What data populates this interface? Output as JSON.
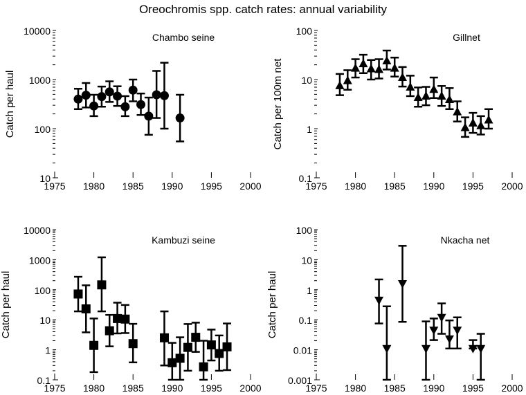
{
  "chart_data": {
    "title": "Oreochromis spp. catch rates: annual variability",
    "panels": [
      {
        "type": "scatter",
        "title": "Chambo seine",
        "ylabel": "Catch per haul",
        "xlabel": "",
        "yscale": "log",
        "ylim": [
          10,
          10000
        ],
        "yticks": [
          "10",
          "100",
          "1000",
          "10000"
        ],
        "xlim": [
          1975,
          2000
        ],
        "xticks": [
          "1975",
          "1980",
          "1985",
          "1990",
          "1995",
          "2000"
        ],
        "marker": "circle",
        "points": [
          {
            "x": 1978,
            "y": 400,
            "lo": 250,
            "hi": 650
          },
          {
            "x": 1979,
            "y": 480,
            "lo": 270,
            "hi": 850
          },
          {
            "x": 1980,
            "y": 290,
            "lo": 180,
            "hi": 490
          },
          {
            "x": 1981,
            "y": 450,
            "lo": 280,
            "hi": 720
          },
          {
            "x": 1982,
            "y": 560,
            "lo": 350,
            "hi": 920
          },
          {
            "x": 1983,
            "y": 460,
            "lo": 290,
            "hi": 730
          },
          {
            "x": 1984,
            "y": 280,
            "lo": 180,
            "hi": 460
          },
          {
            "x": 1985,
            "y": 610,
            "lo": 360,
            "hi": 1000
          },
          {
            "x": 1986,
            "y": 310,
            "lo": 190,
            "hi": 520
          },
          {
            "x": 1987,
            "y": 180,
            "lo": 75,
            "hi": 430
          },
          {
            "x": 1988,
            "y": 490,
            "lo": 165,
            "hi": 1500
          },
          {
            "x": 1989,
            "y": 470,
            "lo": 100,
            "hi": 2200
          },
          {
            "x": 1991,
            "y": 165,
            "lo": 55,
            "hi": 490
          }
        ]
      },
      {
        "type": "scatter",
        "title": "Gillnet",
        "ylabel": "Catch per 100m net",
        "xlabel": "",
        "yscale": "log",
        "ylim": [
          0.1,
          100
        ],
        "yticks": [
          "0.1",
          "1",
          "10",
          "100"
        ],
        "xlim": [
          1975,
          2000
        ],
        "xticks": [
          "1975",
          "1980",
          "1985",
          "1990",
          "1995",
          "2000"
        ],
        "marker": "triangle-up",
        "points": [
          {
            "x": 1978,
            "y": 7.5,
            "lo": 4.8,
            "hi": 13
          },
          {
            "x": 1979,
            "y": 9.5,
            "lo": 6.2,
            "hi": 15.5
          },
          {
            "x": 1980,
            "y": 17,
            "lo": 11,
            "hi": 26
          },
          {
            "x": 1981,
            "y": 21,
            "lo": 13.5,
            "hi": 32
          },
          {
            "x": 1982,
            "y": 16.5,
            "lo": 10,
            "hi": 25
          },
          {
            "x": 1983,
            "y": 16,
            "lo": 10.5,
            "hi": 26
          },
          {
            "x": 1984,
            "y": 24,
            "lo": 16,
            "hi": 39
          },
          {
            "x": 1985,
            "y": 17,
            "lo": 11.5,
            "hi": 28
          },
          {
            "x": 1986,
            "y": 11,
            "lo": 7.2,
            "hi": 18
          },
          {
            "x": 1987,
            "y": 7,
            "lo": 4.6,
            "hi": 12
          },
          {
            "x": 1988,
            "y": 4.3,
            "lo": 2.8,
            "hi": 6.9
          },
          {
            "x": 1989,
            "y": 4.6,
            "lo": 3,
            "hi": 7.1
          },
          {
            "x": 1990,
            "y": 6.3,
            "lo": 4.2,
            "hi": 11
          },
          {
            "x": 1991,
            "y": 4.6,
            "lo": 2.9,
            "hi": 7.4
          },
          {
            "x": 1992,
            "y": 3.9,
            "lo": 2.5,
            "hi": 6.7
          },
          {
            "x": 1993,
            "y": 2.2,
            "lo": 1.4,
            "hi": 3.6
          },
          {
            "x": 1994,
            "y": 1.05,
            "lo": 0.68,
            "hi": 1.7
          },
          {
            "x": 1995,
            "y": 1.3,
            "lo": 0.82,
            "hi": 2.1
          },
          {
            "x": 1996,
            "y": 1.15,
            "lo": 0.76,
            "hi": 1.8
          },
          {
            "x": 1997,
            "y": 1.5,
            "lo": 1,
            "hi": 2.5
          }
        ]
      },
      {
        "type": "scatter",
        "title": "Kambuzi seine",
        "ylabel": "Catch per haul",
        "xlabel": "",
        "yscale": "log",
        "ylim": [
          0.1,
          10000
        ],
        "yticks": [
          "0.1",
          "1",
          "10",
          "100",
          "1000",
          "10000"
        ],
        "xlim": [
          1975,
          2000
        ],
        "xticks": [
          "1975",
          "1980",
          "1985",
          "1990",
          "1995",
          "2000"
        ],
        "marker": "square",
        "points": [
          {
            "x": 1978,
            "y": 72,
            "lo": 19,
            "hi": 270
          },
          {
            "x": 1979,
            "y": 23,
            "lo": 3.8,
            "hi": 140
          },
          {
            "x": 1980,
            "y": 1.4,
            "lo": 0.18,
            "hi": 11
          },
          {
            "x": 1981,
            "y": 145,
            "lo": 19,
            "hi": 1200
          },
          {
            "x": 1982,
            "y": 4.3,
            "lo": 1.3,
            "hi": 14.5
          },
          {
            "x": 1983,
            "y": 11,
            "lo": 3.5,
            "hi": 37
          },
          {
            "x": 1984,
            "y": 10.5,
            "lo": 3.6,
            "hi": 31
          },
          {
            "x": 1985,
            "y": 1.6,
            "lo": 0.38,
            "hi": 7.3
          },
          {
            "x": 1989,
            "y": 2.5,
            "lo": 0.3,
            "hi": 19
          },
          {
            "x": 1990,
            "y": 0.37,
            "lo": 0.1,
            "hi": 1.7
          },
          {
            "x": 1991,
            "y": 0.52,
            "lo": 0.1,
            "hi": 2.6
          },
          {
            "x": 1992,
            "y": 1.2,
            "lo": 0.2,
            "hi": 7.2
          },
          {
            "x": 1993,
            "y": 2.6,
            "lo": 0.85,
            "hi": 8
          },
          {
            "x": 1994,
            "y": 0.27,
            "lo": 0.1,
            "hi": 2
          },
          {
            "x": 1995,
            "y": 1.45,
            "lo": 0.44,
            "hi": 4.7
          },
          {
            "x": 1996,
            "y": 0.75,
            "lo": 0.2,
            "hi": 3
          },
          {
            "x": 1997,
            "y": 1.25,
            "lo": 0.21,
            "hi": 7.5
          }
        ]
      },
      {
        "type": "scatter",
        "title": "Nkacha net",
        "ylabel": "Catch per haul",
        "xlabel": "",
        "yscale": "log",
        "ylim": [
          0.001,
          100
        ],
        "yticks": [
          "0.001",
          "0.01",
          "0.1",
          "1",
          "10",
          "100"
        ],
        "xlim": [
          1975,
          2000
        ],
        "xticks": [
          "1975",
          "1980",
          "1985",
          "1990",
          "1995",
          "2000"
        ],
        "marker": "triangle-down",
        "points": [
          {
            "x": 1983,
            "y": 0.45,
            "lo": 0.075,
            "hi": 2.2
          },
          {
            "x": 1984,
            "y": 0.011,
            "lo": 0.001,
            "hi": 0.28
          },
          {
            "x": 1986,
            "y": 1.6,
            "lo": 0.085,
            "hi": 29
          },
          {
            "x": 1989,
            "y": 0.011,
            "lo": 0.001,
            "hi": 0.088
          },
          {
            "x": 1990,
            "y": 0.045,
            "lo": 0.021,
            "hi": 0.11
          },
          {
            "x": 1991,
            "y": 0.12,
            "lo": 0.034,
            "hi": 0.35
          },
          {
            "x": 1992,
            "y": 0.023,
            "lo": 0.011,
            "hi": 0.095
          },
          {
            "x": 1993,
            "y": 0.045,
            "lo": 0.011,
            "hi": 0.12
          },
          {
            "x": 1995,
            "y": 0.011,
            "lo": 0.011,
            "hi": 0.021
          },
          {
            "x": 1996,
            "y": 0.011,
            "lo": 0.001,
            "hi": 0.034
          }
        ]
      }
    ]
  }
}
